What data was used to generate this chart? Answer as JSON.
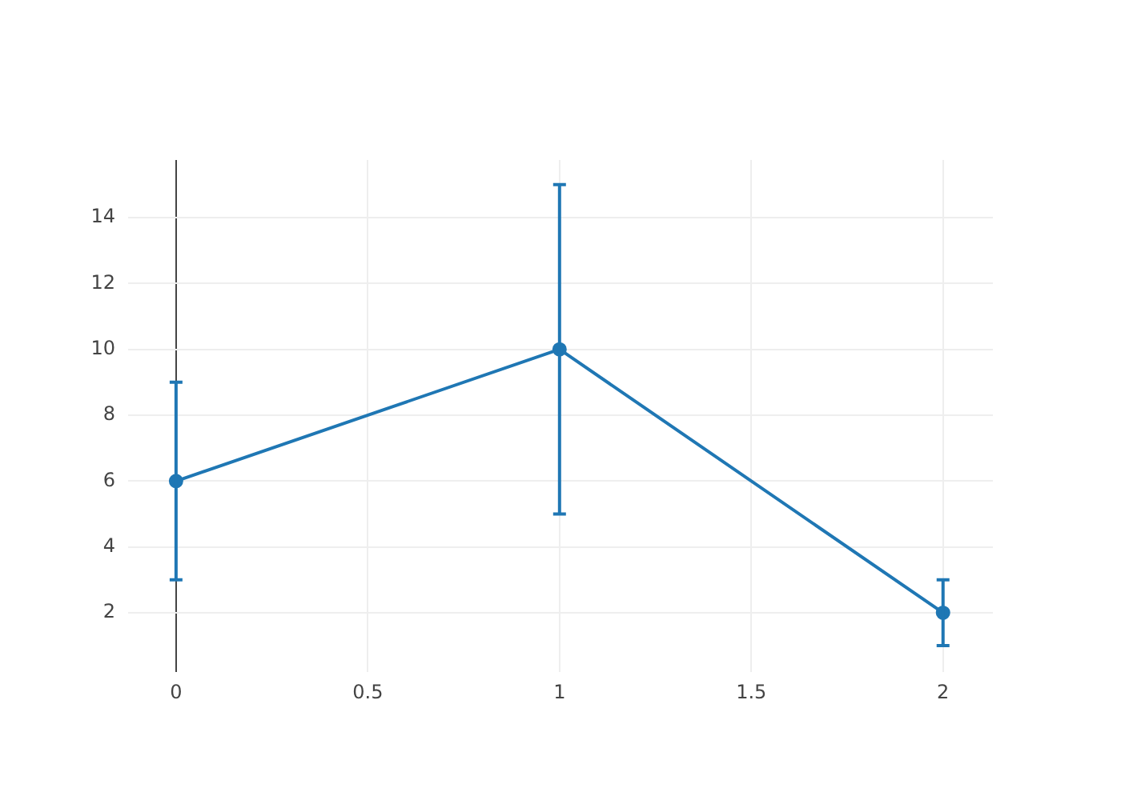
{
  "chart_data": {
    "type": "line",
    "x": [
      0,
      1,
      2
    ],
    "series": [
      {
        "color": "#1f77b4",
        "values": [
          6,
          10,
          2
        ],
        "errors": [
          3,
          5,
          1
        ]
      }
    ],
    "xlim": [
      -0.125,
      2.13
    ],
    "ylim": [
      0.2,
      15.75
    ],
    "xticks": [
      0,
      0.5,
      1,
      1.5,
      2
    ],
    "yticks": [
      2,
      4,
      6,
      8,
      10,
      12,
      14
    ],
    "grid": true,
    "marker": "circle"
  }
}
